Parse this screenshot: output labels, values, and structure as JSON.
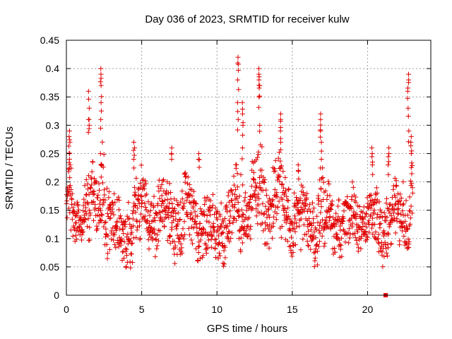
{
  "chart_data": {
    "type": "scatter",
    "title": "Day 036 of 2023, SRMTID for receiver kulw",
    "xlabel": "GPS time / hours",
    "ylabel": "SRMTID / TECUs",
    "xlim": [
      0,
      24.2
    ],
    "ylim": [
      0,
      0.45
    ],
    "xticks": [
      0,
      5,
      10,
      15,
      20
    ],
    "xtick_labels": [
      "0",
      "5",
      "10",
      "15",
      "20"
    ],
    "yticks": [
      0,
      0.05,
      0.1,
      0.15,
      0.2,
      0.25,
      0.3,
      0.35,
      0.4,
      0.45
    ],
    "ytick_labels": [
      "0",
      "0.05",
      "0.1",
      "0.15",
      "0.2",
      "0.25",
      "0.3",
      "0.35",
      "0.4",
      "0.45"
    ],
    "grid": true,
    "marker": "plus",
    "color": "#e00000",
    "gap_marker": {
      "x": 21.2,
      "y": 0.0
    },
    "series": [
      {
        "name": "SRMTID",
        "envelope": {
          "x": [
            0.0,
            0.3,
            0.6,
            1.0,
            1.5,
            2.0,
            2.4,
            3.0,
            3.5,
            4.0,
            4.5,
            5.0,
            5.5,
            6.0,
            6.5,
            7.0,
            7.5,
            8.0,
            8.5,
            9.0,
            9.5,
            10.0,
            10.5,
            11.0,
            11.5,
            12.0,
            12.5,
            13.0,
            13.5,
            14.0,
            14.5,
            15.0,
            15.5,
            16.0,
            16.5,
            17.0,
            17.5,
            18.0,
            18.5,
            19.0,
            19.5,
            20.0,
            20.5,
            21.0,
            21.5,
            22.0,
            22.5,
            23.0
          ],
          "low": [
            0.09,
            0.08,
            0.07,
            0.09,
            0.09,
            0.08,
            0.07,
            0.06,
            0.04,
            0.03,
            0.06,
            0.07,
            0.06,
            0.07,
            0.07,
            0.06,
            0.05,
            0.06,
            0.07,
            0.05,
            0.04,
            0.06,
            0.05,
            0.06,
            0.07,
            0.08,
            0.09,
            0.08,
            0.07,
            0.07,
            0.06,
            0.06,
            0.05,
            0.06,
            0.05,
            0.06,
            0.06,
            0.07,
            0.06,
            0.06,
            0.07,
            0.08,
            0.06,
            0.05,
            0.07,
            0.07,
            0.08,
            0.09
          ],
          "high": [
            0.22,
            0.26,
            0.16,
            0.19,
            0.25,
            0.22,
            0.3,
            0.21,
            0.17,
            0.18,
            0.22,
            0.23,
            0.2,
            0.21,
            0.22,
            0.21,
            0.2,
            0.22,
            0.2,
            0.2,
            0.18,
            0.18,
            0.2,
            0.22,
            0.25,
            0.23,
            0.25,
            0.27,
            0.24,
            0.28,
            0.24,
            0.21,
            0.2,
            0.2,
            0.19,
            0.24,
            0.19,
            0.2,
            0.19,
            0.2,
            0.19,
            0.18,
            0.21,
            0.18,
            0.2,
            0.21,
            0.21,
            0.26
          ]
        },
        "spikes": [
          {
            "x": 0.2,
            "values": [
              0.24,
              0.25,
              0.27,
              0.28,
              0.29
            ]
          },
          {
            "x": 1.5,
            "values": [
              0.3,
              0.31,
              0.33,
              0.36
            ]
          },
          {
            "x": 2.3,
            "values": [
              0.25,
              0.31,
              0.34,
              0.37,
              0.39,
              0.4
            ]
          },
          {
            "x": 4.5,
            "values": [
              0.24,
              0.26,
              0.27
            ]
          },
          {
            "x": 7.0,
            "values": [
              0.25,
              0.26
            ]
          },
          {
            "x": 8.8,
            "values": [
              0.24,
              0.25
            ]
          },
          {
            "x": 11.4,
            "values": [
              0.31,
              0.34,
              0.38,
              0.41,
              0.42
            ]
          },
          {
            "x": 11.7,
            "values": [
              0.26,
              0.3,
              0.32,
              0.34
            ]
          },
          {
            "x": 12.8,
            "values": [
              0.3,
              0.35,
              0.37,
              0.38,
              0.39,
              0.4
            ]
          },
          {
            "x": 14.2,
            "values": [
              0.27,
              0.29,
              0.31,
              0.32
            ]
          },
          {
            "x": 15.4,
            "values": [
              0.22,
              0.23
            ]
          },
          {
            "x": 16.9,
            "values": [
              0.24,
              0.27,
              0.29,
              0.31,
              0.32
            ]
          },
          {
            "x": 20.3,
            "values": [
              0.23,
              0.25,
              0.26
            ]
          },
          {
            "x": 21.4,
            "values": [
              0.23,
              0.25,
              0.26
            ]
          },
          {
            "x": 22.7,
            "values": [
              0.29,
              0.33,
              0.36,
              0.38,
              0.39
            ]
          },
          {
            "x": 22.9,
            "values": [
              0.25,
              0.27,
              0.28
            ]
          }
        ]
      }
    ]
  }
}
